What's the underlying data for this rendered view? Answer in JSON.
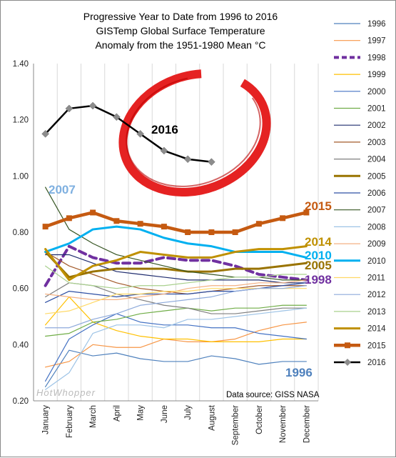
{
  "chart_data": {
    "type": "line",
    "title": [
      "Progressive Year to Date from 1996 to 2016",
      "GISTemp Global Surface Temperature",
      "Anomaly from the 1951-1980 Mean °C"
    ],
    "xlabel": "",
    "ylabel": "",
    "categories": [
      "January",
      "February",
      "March",
      "April",
      "May",
      "June",
      "July",
      "August",
      "September",
      "October",
      "November",
      "December"
    ],
    "y_ticks": [
      "0.20",
      "0.40",
      "0.60",
      "0.80",
      "1.00",
      "1.20",
      "1.40"
    ],
    "ylim": [
      0.2,
      1.4
    ],
    "grid": "vertical",
    "legend_position": "right",
    "source_text": "Data source: GISS NASA",
    "watermark_text": "HotWhopper",
    "series": [
      {
        "name": "1996",
        "color": "#4f81bd",
        "width": 1.2,
        "values": [
          0.25,
          0.38,
          0.36,
          0.37,
          0.35,
          0.34,
          0.34,
          0.36,
          0.35,
          0.33,
          0.34,
          0.34
        ]
      },
      {
        "name": "1997",
        "color": "#f79646",
        "width": 1.2,
        "values": [
          0.32,
          0.34,
          0.4,
          0.39,
          0.39,
          0.42,
          0.41,
          0.41,
          0.42,
          0.45,
          0.47,
          0.48
        ]
      },
      {
        "name": "1998",
        "color": "#7030a0",
        "width": 4,
        "dash": "10,6",
        "values": [
          0.61,
          0.75,
          0.71,
          0.69,
          0.69,
          0.71,
          0.7,
          0.7,
          0.68,
          0.65,
          0.64,
          0.63
        ]
      },
      {
        "name": "1999",
        "color": "#ffc000",
        "width": 1.2,
        "values": [
          0.47,
          0.57,
          0.48,
          0.45,
          0.43,
          0.42,
          0.42,
          0.41,
          0.41,
          0.41,
          0.42,
          0.42
        ]
      },
      {
        "name": "2000",
        "color": "#4472c4",
        "width": 1.2,
        "values": [
          0.27,
          0.42,
          0.47,
          0.51,
          0.48,
          0.47,
          0.47,
          0.46,
          0.46,
          0.44,
          0.43,
          0.42
        ]
      },
      {
        "name": "2001",
        "color": "#70ad47",
        "width": 1.2,
        "values": [
          0.43,
          0.44,
          0.48,
          0.49,
          0.51,
          0.52,
          0.53,
          0.52,
          0.53,
          0.53,
          0.54,
          0.54
        ]
      },
      {
        "name": "2002",
        "color": "#1f2c6e",
        "width": 1.2,
        "values": [
          0.72,
          0.72,
          0.69,
          0.66,
          0.65,
          0.64,
          0.63,
          0.63,
          0.63,
          0.63,
          0.62,
          0.62
        ]
      },
      {
        "name": "2003",
        "color": "#a35a2a",
        "width": 1.2,
        "values": [
          0.73,
          0.68,
          0.65,
          0.62,
          0.6,
          0.59,
          0.58,
          0.59,
          0.6,
          0.61,
          0.61,
          0.61
        ]
      },
      {
        "name": "2004",
        "color": "#7f7f7f",
        "width": 1.2,
        "values": [
          0.57,
          0.62,
          0.61,
          0.58,
          0.56,
          0.54,
          0.53,
          0.51,
          0.51,
          0.52,
          0.53,
          0.53
        ]
      },
      {
        "name": "2005",
        "color": "#997300",
        "width": 3,
        "values": [
          0.73,
          0.64,
          0.66,
          0.67,
          0.67,
          0.67,
          0.66,
          0.66,
          0.67,
          0.67,
          0.68,
          0.69
        ]
      },
      {
        "name": "2006",
        "color": "#2e4fa3",
        "width": 1.2,
        "values": [
          0.55,
          0.59,
          0.58,
          0.57,
          0.58,
          0.58,
          0.58,
          0.59,
          0.59,
          0.6,
          0.61,
          0.62
        ]
      },
      {
        "name": "2007",
        "color": "#375623",
        "width": 1.2,
        "values": [
          0.96,
          0.81,
          0.76,
          0.72,
          0.7,
          0.68,
          0.66,
          0.65,
          0.64,
          0.64,
          0.63,
          0.63
        ]
      },
      {
        "name": "2008",
        "color": "#9dc3e6",
        "width": 1.2,
        "values": [
          0.24,
          0.3,
          0.44,
          0.47,
          0.47,
          0.46,
          0.49,
          0.49,
          0.5,
          0.51,
          0.52,
          0.53
        ]
      },
      {
        "name": "2009",
        "color": "#f4b183",
        "width": 1.2,
        "values": [
          0.58,
          0.57,
          0.56,
          0.56,
          0.57,
          0.58,
          0.6,
          0.61,
          0.61,
          0.62,
          0.62,
          0.63
        ]
      },
      {
        "name": "2010",
        "color": "#00b0f0",
        "width": 3,
        "values": [
          0.73,
          0.76,
          0.81,
          0.82,
          0.81,
          0.78,
          0.76,
          0.75,
          0.73,
          0.73,
          0.73,
          0.71
        ]
      },
      {
        "name": "2011",
        "color": "#ffd966",
        "width": 1.2,
        "values": [
          0.51,
          0.52,
          0.55,
          0.58,
          0.58,
          0.59,
          0.59,
          0.6,
          0.6,
          0.6,
          0.6,
          0.6
        ]
      },
      {
        "name": "2012",
        "color": "#8eaadb",
        "width": 1.2,
        "values": [
          0.46,
          0.46,
          0.49,
          0.51,
          0.54,
          0.55,
          0.56,
          0.57,
          0.59,
          0.6,
          0.6,
          0.61
        ]
      },
      {
        "name": "2013",
        "color": "#a9d08e",
        "width": 1.2,
        "values": [
          0.68,
          0.62,
          0.61,
          0.6,
          0.61,
          0.61,
          0.62,
          0.63,
          0.64,
          0.64,
          0.65,
          0.65
        ]
      },
      {
        "name": "2014",
        "color": "#bf9000",
        "width": 3,
        "values": [
          0.74,
          0.63,
          0.68,
          0.7,
          0.73,
          0.72,
          0.71,
          0.71,
          0.73,
          0.74,
          0.74,
          0.75
        ]
      },
      {
        "name": "2015",
        "color": "#c55a11",
        "width": 4.5,
        "marker": "square",
        "values": [
          0.82,
          0.85,
          0.87,
          0.84,
          0.83,
          0.82,
          0.8,
          0.8,
          0.8,
          0.83,
          0.85,
          0.87
        ]
      },
      {
        "name": "2016",
        "color": "#000000",
        "width": 2.5,
        "marker": "diamond",
        "values": [
          1.15,
          1.24,
          1.25,
          1.21,
          1.15,
          1.09,
          1.06,
          1.05,
          null,
          null,
          null,
          null
        ]
      }
    ],
    "annotations": [
      {
        "text": "2016",
        "color": "#000000",
        "series": "2016"
      },
      {
        "text": "2007",
        "color": "#7fb0e0",
        "series": "2007"
      },
      {
        "text": "2015",
        "color": "#c55a11",
        "series": "2015"
      },
      {
        "text": "2014",
        "color": "#bf9000",
        "series": "2014"
      },
      {
        "text": "2010",
        "color": "#00b0f0",
        "series": "2010"
      },
      {
        "text": "2005",
        "color": "#997300",
        "series": "2005"
      },
      {
        "text": "1998",
        "color": "#7030a0",
        "series": "1998"
      },
      {
        "text": "1996",
        "color": "#4f81bd",
        "series": "1996"
      }
    ]
  }
}
